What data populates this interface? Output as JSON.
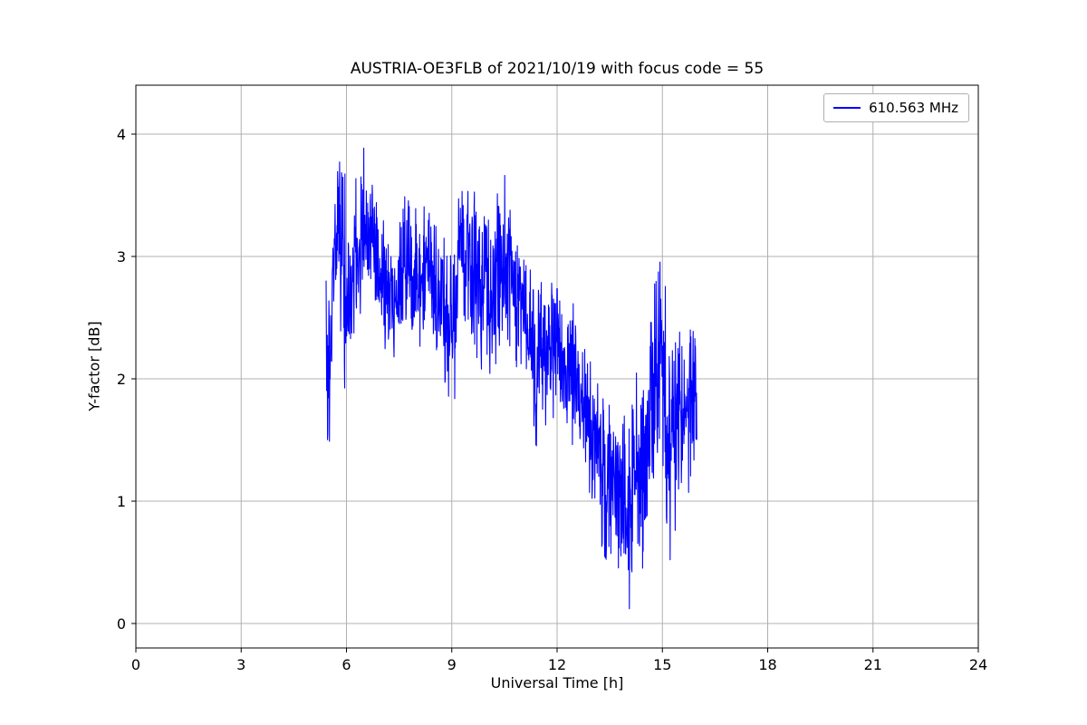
{
  "chart_data": {
    "type": "line",
    "title": "AUSTRIA-OE3FLB of 2021/10/19 with focus code = 55",
    "xlabel": "Universal Time [h]",
    "ylabel": "Y-factor [dB]",
    "xlim": [
      0,
      24
    ],
    "ylim": [
      -0.2,
      4.4
    ],
    "xticks": [
      0,
      3,
      6,
      9,
      12,
      15,
      18,
      21,
      24
    ],
    "yticks": [
      0,
      1,
      2,
      3,
      4
    ],
    "grid": true,
    "grid_color": "#b0b0b0",
    "legend": {
      "position": "upper right",
      "entries": [
        {
          "label": "610.563 MHz",
          "color": "#0000ff"
        }
      ]
    },
    "series": [
      {
        "name": "610.563 MHz",
        "color": "#0000ff",
        "x_range": [
          5.42,
          15.98
        ],
        "y_max": 4.22,
        "y_min": 0.0,
        "envelope_t_min_max": [
          [
            5.42,
            1.9,
            3.0
          ],
          [
            5.5,
            1.0,
            3.0
          ],
          [
            5.6,
            2.0,
            3.3
          ],
          [
            5.7,
            2.6,
            3.9
          ],
          [
            5.8,
            2.6,
            4.22
          ],
          [
            5.9,
            1.9,
            4.05
          ],
          [
            6.0,
            1.65,
            3.5
          ],
          [
            6.1,
            2.1,
            3.5
          ],
          [
            6.3,
            2.4,
            3.7
          ],
          [
            6.5,
            2.6,
            3.95
          ],
          [
            6.7,
            2.5,
            3.8
          ],
          [
            6.9,
            2.3,
            3.6
          ],
          [
            7.1,
            2.1,
            3.3
          ],
          [
            7.3,
            1.95,
            3.1
          ],
          [
            7.5,
            2.3,
            3.4
          ],
          [
            7.7,
            2.4,
            3.6
          ],
          [
            7.9,
            2.2,
            3.4
          ],
          [
            8.1,
            2.2,
            3.45
          ],
          [
            8.3,
            2.3,
            3.6
          ],
          [
            8.5,
            2.1,
            3.3
          ],
          [
            8.7,
            1.95,
            3.2
          ],
          [
            8.9,
            1.7,
            3.1
          ],
          [
            9.0,
            1.45,
            3.2
          ],
          [
            9.2,
            2.2,
            3.6
          ],
          [
            9.4,
            2.3,
            3.78
          ],
          [
            9.6,
            1.85,
            3.6
          ],
          [
            9.8,
            2.0,
            3.5
          ],
          [
            10.0,
            2.1,
            3.5
          ],
          [
            10.2,
            1.9,
            3.4
          ],
          [
            10.45,
            2.1,
            3.77
          ],
          [
            10.6,
            2.2,
            3.6
          ],
          [
            10.8,
            2.0,
            3.3
          ],
          [
            11.0,
            2.1,
            3.1
          ],
          [
            11.2,
            1.8,
            3.0
          ],
          [
            11.4,
            1.35,
            2.8
          ],
          [
            11.6,
            1.6,
            2.9
          ],
          [
            11.85,
            1.65,
            2.9
          ],
          [
            12.0,
            1.7,
            2.75
          ],
          [
            12.2,
            1.5,
            2.6
          ],
          [
            12.45,
            1.45,
            2.75
          ],
          [
            12.6,
            1.5,
            2.5
          ],
          [
            12.8,
            1.15,
            2.25
          ],
          [
            13.0,
            1.0,
            2.1
          ],
          [
            13.2,
            0.7,
            2.0
          ],
          [
            13.4,
            0.22,
            1.95
          ],
          [
            13.6,
            0.55,
            1.9
          ],
          [
            13.8,
            0.4,
            1.85
          ],
          [
            14.0,
            0.02,
            1.8
          ],
          [
            14.2,
            0.3,
            2.05
          ],
          [
            14.4,
            0.35,
            2.2
          ],
          [
            14.6,
            0.7,
            2.5
          ],
          [
            14.8,
            0.9,
            2.85
          ],
          [
            15.0,
            1.0,
            3.07
          ],
          [
            15.2,
            0.45,
            2.6
          ],
          [
            15.4,
            0.8,
            2.6
          ],
          [
            15.6,
            0.9,
            2.7
          ],
          [
            15.8,
            1.1,
            2.65
          ],
          [
            15.98,
            1.25,
            2.55
          ]
        ]
      }
    ]
  }
}
